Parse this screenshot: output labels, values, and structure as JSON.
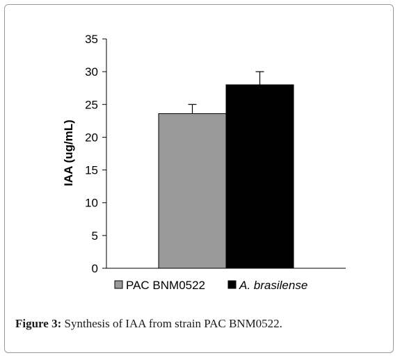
{
  "chart_data": {
    "type": "bar",
    "categories": [
      "PAC BNM0522",
      "A. brasilense"
    ],
    "values": [
      23.6,
      28.0
    ],
    "errors": [
      1.4,
      2.0
    ],
    "colors": [
      "#999999",
      "#000000"
    ],
    "ylabel": "IAA (ug/mL)",
    "ylim": [
      0,
      35
    ],
    "yticks": [
      0,
      5,
      10,
      15,
      20,
      25,
      30,
      35
    ],
    "grid": false,
    "legend": {
      "position": "bottom",
      "entries": [
        {
          "label": "PAC BNM0522",
          "color": "#999999",
          "italic": false
        },
        {
          "label": "A. brasilense",
          "color": "#000000",
          "italic": true
        }
      ]
    }
  },
  "caption": {
    "label": "Figure 3:",
    "text": " Synthesis of IAA from strain PAC BNM0522."
  }
}
